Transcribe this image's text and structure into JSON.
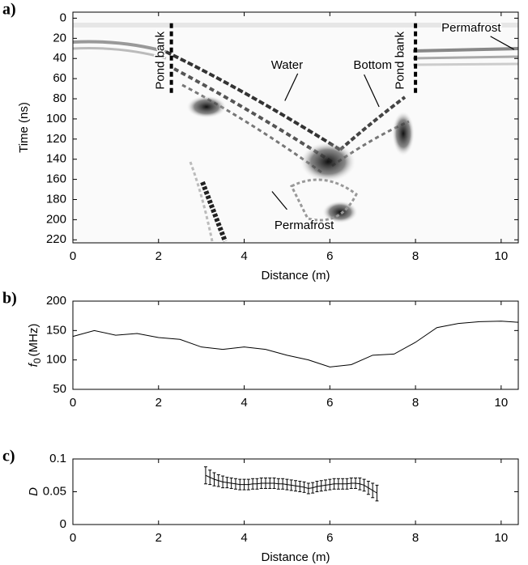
{
  "chart_data": [
    {
      "type": "image",
      "panel_label": "a)",
      "xlabel": "Distance (m)",
      "ylabel": "Time (ns)",
      "xlim": [
        0,
        10.4
      ],
      "xticks": [
        0,
        2,
        4,
        6,
        8,
        10
      ],
      "ylim": [
        223,
        -6
      ],
      "yticks": [
        0,
        20,
        40,
        60,
        80,
        100,
        120,
        140,
        160,
        180,
        200,
        220
      ],
      "annotations": [
        "Pond bank",
        "Water",
        "Bottom",
        "Pond bank",
        "Permafrost",
        "Permafrost"
      ]
    },
    {
      "type": "line",
      "panel_label": "b)",
      "xlabel": null,
      "ylabel_symbol": "f",
      "ylabel_subscript": "0",
      "ylabel_unit": "(MHz)",
      "xlim": [
        0,
        10.4
      ],
      "xticks": [
        0,
        2,
        4,
        6,
        8,
        10
      ],
      "ylim": [
        50,
        200
      ],
      "yticks": [
        50,
        100,
        150,
        200
      ],
      "color": "#000000",
      "x": [
        0,
        0.5,
        1,
        1.5,
        2,
        2.5,
        3,
        3.5,
        4,
        4.5,
        5,
        5.5,
        6,
        6.5,
        7,
        7.5,
        8,
        8.5,
        9,
        9.5,
        10,
        10.4
      ],
      "values": [
        140,
        150,
        142,
        145,
        138,
        135,
        122,
        118,
        122,
        118,
        108,
        100,
        88,
        92,
        108,
        110,
        130,
        155,
        162,
        165,
        166,
        164
      ]
    },
    {
      "type": "errorbar",
      "panel_label": "c)",
      "xlabel": "Distance (m)",
      "ylabel": "D",
      "xlim": [
        0,
        10.4
      ],
      "xticks": [
        0,
        2,
        4,
        6,
        8,
        10
      ],
      "ylim": [
        0,
        0.1
      ],
      "yticks": [
        0,
        0.05,
        0.1
      ],
      "color": "#000000",
      "x": [
        3.1,
        3.2,
        3.3,
        3.4,
        3.5,
        3.6,
        3.7,
        3.8,
        3.9,
        4.0,
        4.1,
        4.2,
        4.3,
        4.4,
        4.5,
        4.6,
        4.7,
        4.8,
        4.9,
        5.0,
        5.1,
        5.2,
        5.3,
        5.4,
        5.5,
        5.6,
        5.7,
        5.8,
        5.9,
        6.0,
        6.1,
        6.2,
        6.3,
        6.4,
        6.5,
        6.6,
        6.7,
        6.8,
        6.9,
        7.0,
        7.1
      ],
      "values": [
        0.075,
        0.072,
        0.069,
        0.067,
        0.065,
        0.064,
        0.063,
        0.062,
        0.061,
        0.061,
        0.061,
        0.062,
        0.062,
        0.063,
        0.063,
        0.063,
        0.063,
        0.062,
        0.062,
        0.061,
        0.06,
        0.059,
        0.058,
        0.057,
        0.055,
        0.056,
        0.058,
        0.059,
        0.06,
        0.061,
        0.062,
        0.062,
        0.062,
        0.062,
        0.063,
        0.063,
        0.062,
        0.06,
        0.056,
        0.052,
        0.048
      ],
      "errors": [
        0.013,
        0.011,
        0.01,
        0.009,
        0.009,
        0.008,
        0.008,
        0.008,
        0.008,
        0.008,
        0.008,
        0.008,
        0.008,
        0.008,
        0.008,
        0.008,
        0.008,
        0.008,
        0.008,
        0.008,
        0.008,
        0.008,
        0.008,
        0.008,
        0.008,
        0.008,
        0.008,
        0.008,
        0.008,
        0.008,
        0.008,
        0.008,
        0.008,
        0.008,
        0.008,
        0.008,
        0.009,
        0.009,
        0.01,
        0.011,
        0.012
      ]
    }
  ]
}
